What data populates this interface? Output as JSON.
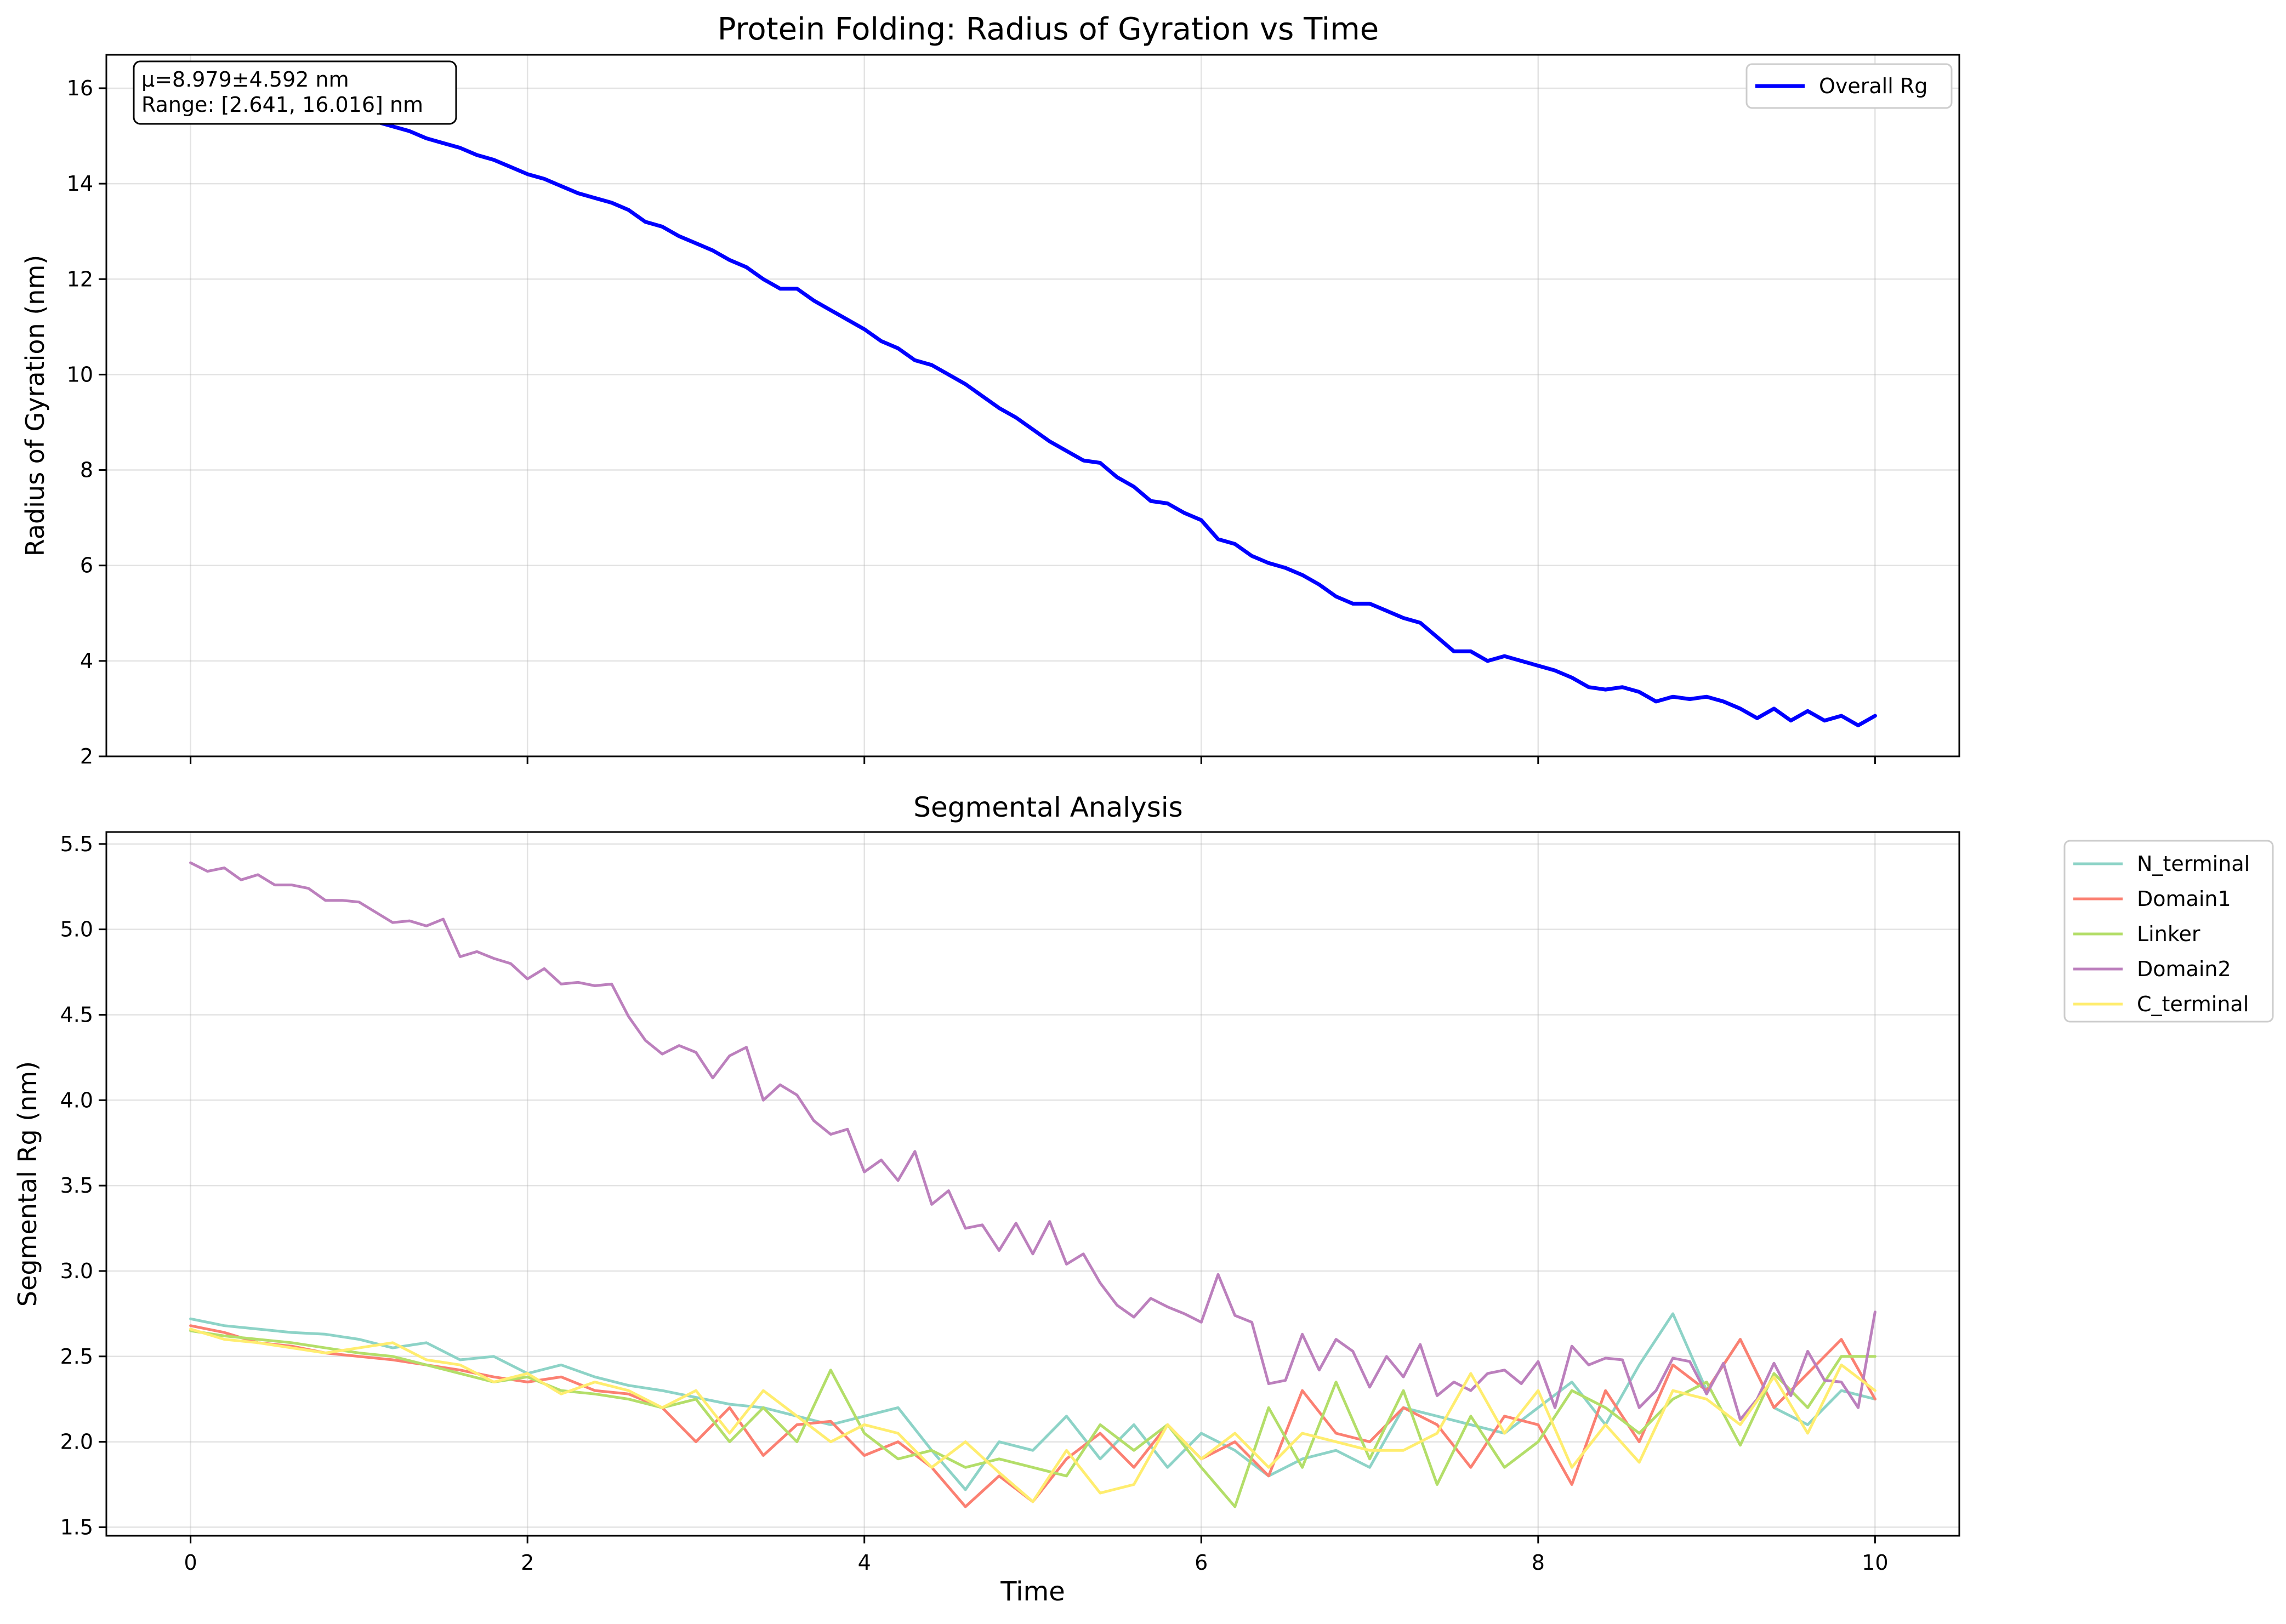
{
  "chart_data": [
    {
      "type": "line",
      "title": "Protein Folding: Radius of Gyration vs Time",
      "ylabel": "Radius of Gyration (nm)",
      "xlabel": "",
      "xlim": [
        -0.5,
        10.5
      ],
      "ylim": [
        2.0,
        16.7
      ],
      "xticks": [
        "0",
        "2",
        "4",
        "6",
        "8",
        "10"
      ],
      "yticks": [
        "2",
        "4",
        "6",
        "8",
        "10",
        "12",
        "14",
        "16"
      ],
      "grid": true,
      "legend_position": "upper-right",
      "annotation": [
        "μ=8.979±4.592 nm",
        "Range: [2.641, 16.016] nm"
      ],
      "series": [
        {
          "name": "Overall Rg",
          "color": "#0000ff",
          "x": [
            0,
            0.1,
            0.2,
            0.3,
            0.4,
            0.5,
            0.6,
            0.7,
            0.8,
            0.9,
            1.0,
            1.1,
            1.2,
            1.3,
            1.4,
            1.5,
            1.6,
            1.7,
            1.8,
            1.9,
            2.0,
            2.1,
            2.2,
            2.3,
            2.4,
            2.5,
            2.6,
            2.7,
            2.8,
            2.9,
            3.0,
            3.1,
            3.2,
            3.3,
            3.4,
            3.5,
            3.6,
            3.7,
            3.8,
            3.9,
            4.0,
            4.1,
            4.2,
            4.3,
            4.4,
            4.5,
            4.6,
            4.7,
            4.8,
            4.9,
            5.0,
            5.1,
            5.2,
            5.3,
            5.4,
            5.5,
            5.6,
            5.7,
            5.8,
            5.9,
            6.0,
            6.1,
            6.2,
            6.3,
            6.4,
            6.5,
            6.6,
            6.7,
            6.8,
            6.9,
            7.0,
            7.1,
            7.2,
            7.3,
            7.4,
            7.5,
            7.6,
            7.7,
            7.8,
            7.9,
            8.0,
            8.1,
            8.2,
            8.3,
            8.4,
            8.5,
            8.6,
            8.7,
            8.8,
            8.9,
            9.0,
            9.1,
            9.2,
            9.3,
            9.4,
            9.5,
            9.6,
            9.7,
            9.8,
            9.9,
            10.0
          ],
          "y": [
            16.0,
            15.9,
            15.9,
            15.8,
            15.75,
            15.7,
            15.65,
            15.6,
            15.5,
            15.45,
            15.4,
            15.3,
            15.2,
            15.1,
            14.95,
            14.85,
            14.75,
            14.6,
            14.5,
            14.35,
            14.2,
            14.1,
            13.95,
            13.8,
            13.7,
            13.6,
            13.45,
            13.2,
            13.1,
            12.9,
            12.75,
            12.6,
            12.4,
            12.25,
            12.0,
            11.8,
            11.8,
            11.55,
            11.35,
            11.15,
            10.95,
            10.7,
            10.55,
            10.3,
            10.2,
            10.0,
            9.8,
            9.55,
            9.3,
            9.1,
            8.85,
            8.6,
            8.4,
            8.2,
            8.15,
            7.85,
            7.65,
            7.35,
            7.3,
            7.1,
            6.95,
            6.55,
            6.45,
            6.2,
            6.05,
            5.95,
            5.8,
            5.6,
            5.35,
            5.2,
            5.2,
            5.05,
            4.9,
            4.8,
            4.5,
            4.2,
            4.2,
            4.0,
            4.1,
            4.0,
            3.9,
            3.8,
            3.65,
            3.45,
            3.4,
            3.45,
            3.35,
            3.15,
            3.25,
            3.2,
            3.25,
            3.15,
            3.0,
            2.8,
            3.0,
            2.75,
            2.95,
            2.75,
            2.85,
            2.65,
            2.85
          ]
        }
      ]
    },
    {
      "type": "line",
      "title": "Segmental Analysis",
      "ylabel": "Segmental Rg (nm)",
      "xlabel": "Time",
      "xlim": [
        -0.5,
        10.5
      ],
      "ylim": [
        1.45,
        5.57
      ],
      "xticks": [
        "0",
        "2",
        "4",
        "6",
        "8",
        "10"
      ],
      "yticks": [
        "1.5",
        "2.0",
        "2.5",
        "3.0",
        "3.5",
        "4.0",
        "4.5",
        "5.0",
        "5.5"
      ],
      "grid": true,
      "legend_position": "outside-right",
      "series": [
        {
          "name": "N_terminal",
          "color": "#8dd3c7",
          "x": [
            0,
            0.2,
            0.4,
            0.6,
            0.8,
            1.0,
            1.2,
            1.4,
            1.6,
            1.8,
            2.0,
            2.2,
            2.4,
            2.6,
            2.8,
            3.0,
            3.2,
            3.4,
            3.6,
            3.8,
            4.0,
            4.2,
            4.4,
            4.6,
            4.8,
            5.0,
            5.2,
            5.4,
            5.6,
            5.8,
            6.0,
            6.2,
            6.4,
            6.6,
            6.8,
            7.0,
            7.2,
            7.4,
            7.6,
            7.8,
            8.0,
            8.2,
            8.4,
            8.6,
            8.8,
            9.0,
            9.2,
            9.4,
            9.6,
            9.8,
            10.0
          ],
          "y": [
            2.72,
            2.68,
            2.66,
            2.64,
            2.63,
            2.6,
            2.55,
            2.58,
            2.48,
            2.5,
            2.4,
            2.45,
            2.38,
            2.33,
            2.3,
            2.26,
            2.22,
            2.2,
            2.15,
            2.1,
            2.15,
            2.2,
            1.95,
            1.72,
            2.0,
            1.95,
            2.15,
            1.9,
            2.1,
            1.85,
            2.05,
            1.95,
            1.8,
            1.9,
            1.95,
            1.85,
            2.2,
            2.15,
            2.1,
            2.05,
            2.2,
            2.35,
            2.1,
            2.45,
            2.75,
            2.3,
            2.6,
            2.2,
            2.1,
            2.3,
            2.25
          ]
        },
        {
          "name": "Domain1",
          "color": "#fb8072",
          "x": [
            0,
            0.2,
            0.4,
            0.6,
            0.8,
            1.0,
            1.2,
            1.4,
            1.6,
            1.8,
            2.0,
            2.2,
            2.4,
            2.6,
            2.8,
            3.0,
            3.2,
            3.4,
            3.6,
            3.8,
            4.0,
            4.2,
            4.4,
            4.6,
            4.8,
            5.0,
            5.2,
            5.4,
            5.6,
            5.8,
            6.0,
            6.2,
            6.4,
            6.6,
            6.8,
            7.0,
            7.2,
            7.4,
            7.6,
            7.8,
            8.0,
            8.2,
            8.4,
            8.6,
            8.8,
            9.0,
            9.2,
            9.4,
            9.6,
            9.8,
            10.0
          ],
          "y": [
            2.68,
            2.64,
            2.58,
            2.56,
            2.52,
            2.5,
            2.48,
            2.45,
            2.42,
            2.38,
            2.35,
            2.38,
            2.3,
            2.28,
            2.2,
            2.0,
            2.2,
            1.92,
            2.1,
            2.12,
            1.92,
            2.0,
            1.85,
            1.62,
            1.8,
            1.65,
            1.9,
            2.05,
            1.85,
            2.1,
            1.9,
            2.0,
            1.8,
            2.3,
            2.05,
            2.0,
            2.2,
            2.1,
            1.85,
            2.15,
            2.1,
            1.75,
            2.3,
            2.0,
            2.45,
            2.3,
            2.6,
            2.2,
            2.4,
            2.6,
            2.25
          ]
        },
        {
          "name": "Linker",
          "color": "#b3de69",
          "x": [
            0,
            0.2,
            0.4,
            0.6,
            0.8,
            1.0,
            1.2,
            1.4,
            1.6,
            1.8,
            2.0,
            2.2,
            2.4,
            2.6,
            2.8,
            3.0,
            3.2,
            3.4,
            3.6,
            3.8,
            4.0,
            4.2,
            4.4,
            4.6,
            4.8,
            5.0,
            5.2,
            5.4,
            5.6,
            5.8,
            6.0,
            6.2,
            6.4,
            6.6,
            6.8,
            7.0,
            7.2,
            7.4,
            7.6,
            7.8,
            8.0,
            8.2,
            8.4,
            8.6,
            8.8,
            9.0,
            9.2,
            9.4,
            9.6,
            9.8,
            10.0
          ],
          "y": [
            2.65,
            2.62,
            2.6,
            2.58,
            2.55,
            2.52,
            2.5,
            2.45,
            2.4,
            2.35,
            2.38,
            2.3,
            2.28,
            2.25,
            2.2,
            2.25,
            2.0,
            2.2,
            2.0,
            2.42,
            2.05,
            1.9,
            1.95,
            1.85,
            1.9,
            1.85,
            1.8,
            2.1,
            1.95,
            2.1,
            1.85,
            1.62,
            2.2,
            1.85,
            2.35,
            1.9,
            2.3,
            1.75,
            2.15,
            1.85,
            2.0,
            2.3,
            2.2,
            2.05,
            2.25,
            2.35,
            1.98,
            2.4,
            2.2,
            2.5,
            2.5
          ]
        },
        {
          "name": "Domain2",
          "color": "#bc80bd",
          "x": [
            0,
            0.1,
            0.2,
            0.3,
            0.4,
            0.5,
            0.6,
            0.7,
            0.8,
            0.9,
            1.0,
            1.1,
            1.2,
            1.3,
            1.4,
            1.5,
            1.6,
            1.7,
            1.8,
            1.9,
            2.0,
            2.1,
            2.2,
            2.3,
            2.4,
            2.5,
            2.6,
            2.7,
            2.8,
            2.9,
            3.0,
            3.1,
            3.2,
            3.3,
            3.4,
            3.5,
            3.6,
            3.7,
            3.8,
            3.9,
            4.0,
            4.1,
            4.2,
            4.3,
            4.4,
            4.5,
            4.6,
            4.7,
            4.8,
            4.9,
            5.0,
            5.1,
            5.2,
            5.3,
            5.4,
            5.5,
            5.6,
            5.7,
            5.8,
            5.9,
            6.0,
            6.1,
            6.2,
            6.3,
            6.4,
            6.5,
            6.6,
            6.7,
            6.8,
            6.9,
            7.0,
            7.1,
            7.2,
            7.3,
            7.4,
            7.5,
            7.6,
            7.7,
            7.8,
            7.9,
            8.0,
            8.1,
            8.2,
            8.3,
            8.4,
            8.5,
            8.6,
            8.7,
            8.8,
            8.9,
            9.0,
            9.1,
            9.2,
            9.3,
            9.4,
            9.5,
            9.6,
            9.7,
            9.8,
            9.9,
            10.0
          ],
          "y": [
            5.39,
            5.34,
            5.36,
            5.29,
            5.32,
            5.26,
            5.26,
            5.24,
            5.17,
            5.17,
            5.16,
            5.1,
            5.04,
            5.05,
            5.02,
            5.06,
            4.84,
            4.87,
            4.83,
            4.8,
            4.71,
            4.77,
            4.68,
            4.69,
            4.67,
            4.68,
            4.49,
            4.35,
            4.27,
            4.32,
            4.28,
            4.13,
            4.26,
            4.31,
            4.0,
            4.09,
            4.03,
            3.88,
            3.8,
            3.83,
            3.58,
            3.65,
            3.53,
            3.7,
            3.39,
            3.47,
            3.25,
            3.27,
            3.12,
            3.28,
            3.1,
            3.29,
            3.04,
            3.1,
            2.93,
            2.8,
            2.73,
            2.84,
            2.79,
            2.75,
            2.7,
            2.98,
            2.74,
            2.7,
            2.34,
            2.36,
            2.63,
            2.42,
            2.6,
            2.53,
            2.32,
            2.5,
            2.38,
            2.57,
            2.27,
            2.35,
            2.3,
            2.4,
            2.42,
            2.34,
            2.47,
            2.2,
            2.56,
            2.45,
            2.49,
            2.48,
            2.2,
            2.3,
            2.49,
            2.47,
            2.28,
            2.46,
            2.13,
            2.25,
            2.46,
            2.27,
            2.53,
            2.36,
            2.35,
            2.2,
            2.76
          ]
        },
        {
          "name": "C_terminal",
          "color": "#ffed6f",
          "x": [
            0,
            0.2,
            0.4,
            0.6,
            0.8,
            1.0,
            1.2,
            1.4,
            1.6,
            1.8,
            2.0,
            2.2,
            2.4,
            2.6,
            2.8,
            3.0,
            3.2,
            3.4,
            3.6,
            3.8,
            4.0,
            4.2,
            4.4,
            4.6,
            4.8,
            5.0,
            5.2,
            5.4,
            5.6,
            5.8,
            6.0,
            6.2,
            6.4,
            6.6,
            6.8,
            7.0,
            7.2,
            7.4,
            7.6,
            7.8,
            8.0,
            8.2,
            8.4,
            8.6,
            8.8,
            9.0,
            9.2,
            9.4,
            9.6,
            9.8,
            10.0
          ],
          "y": [
            2.66,
            2.6,
            2.58,
            2.55,
            2.52,
            2.55,
            2.58,
            2.48,
            2.45,
            2.35,
            2.4,
            2.28,
            2.35,
            2.3,
            2.2,
            2.3,
            2.05,
            2.3,
            2.15,
            2.0,
            2.1,
            2.05,
            1.85,
            2.0,
            1.82,
            1.65,
            1.95,
            1.7,
            1.75,
            2.1,
            1.9,
            2.05,
            1.85,
            2.05,
            2.0,
            1.95,
            1.95,
            2.05,
            2.4,
            2.05,
            2.3,
            1.85,
            2.1,
            1.88,
            2.3,
            2.25,
            2.1,
            2.38,
            2.05,
            2.45,
            2.3
          ]
        }
      ]
    }
  ]
}
